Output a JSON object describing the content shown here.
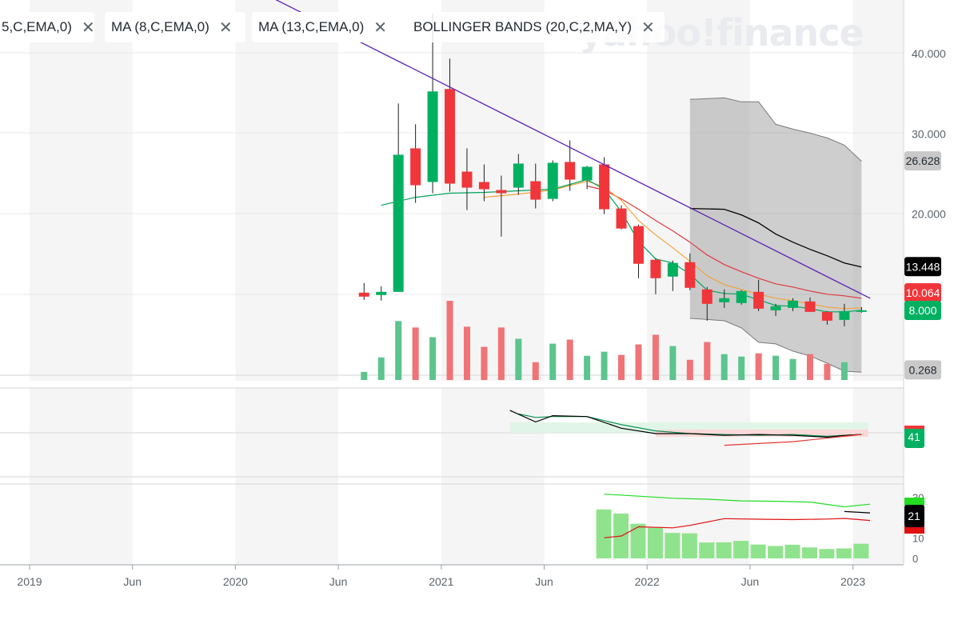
{
  "watermark": "yahoo!finance",
  "indicator_pills": [
    {
      "label": "5,C,EMA,0)",
      "close": "✕"
    },
    {
      "label": "MA (8,C,EMA,0)",
      "close": "✕"
    },
    {
      "label": "MA (13,C,EMA,0)",
      "close": "✕"
    },
    {
      "label": "BOLLINGER BANDS (20,C,2,MA,Y)",
      "close": "✕"
    }
  ],
  "colors": {
    "up": "#00b061",
    "down": "#f0363a",
    "up_vol": "#5cc48d",
    "down_vol": "#f07377",
    "ema5": "#00a35c",
    "ema8": "#f2a33a",
    "ema13": "#e0393e",
    "trend": "#5b1fb5",
    "bb_mid": "#000000",
    "grid": "#e8e8e8",
    "shade": "#f5f5f5"
  },
  "chart_data": [
    {
      "type": "candlestick",
      "x_ticks": [
        "2019",
        "Jun",
        "2020",
        "Jun",
        "2021",
        "Jun",
        "2022",
        "Jun",
        "2023"
      ],
      "y_ticks": [
        "40.000",
        "30.000",
        "20.000"
      ],
      "ylim": [
        -0.2,
        45
      ],
      "price_labels": [
        {
          "text": "26.628",
          "value": 26.628,
          "style": "gray"
        },
        {
          "text": "13.448",
          "value": 13.448,
          "style": "black"
        },
        {
          "text": "10.064",
          "value": 10.064,
          "style": "red"
        },
        {
          "text": "8.000",
          "value": 8.0,
          "style": "green"
        },
        {
          "text": "0.268",
          "value": 0.268,
          "style": "gray"
        }
      ],
      "candles": [
        {
          "t": 19.5,
          "o": 10.2,
          "h": 11.4,
          "l": 9.3,
          "c": 9.7
        },
        {
          "t": 20.5,
          "o": 9.9,
          "h": 11.0,
          "l": 9.2,
          "c": 10.3
        },
        {
          "t": 21.5,
          "o": 10.3,
          "h": 33.8,
          "l": 10.3,
          "c": 27.4
        },
        {
          "t": 22.5,
          "o": 28.2,
          "h": 31.2,
          "l": 21.4,
          "c": 23.6
        },
        {
          "t": 23.5,
          "o": 24.0,
          "h": 45.0,
          "l": 22.6,
          "c": 35.3
        },
        {
          "t": 24.5,
          "o": 35.6,
          "h": 39.4,
          "l": 22.8,
          "c": 23.8
        },
        {
          "t": 25.5,
          "o": 25.3,
          "h": 28.2,
          "l": 20.5,
          "c": 23.3
        },
        {
          "t": 26.5,
          "o": 24.0,
          "h": 26.2,
          "l": 21.6,
          "c": 23.1
        },
        {
          "t": 27.5,
          "o": 23.0,
          "h": 24.8,
          "l": 17.2,
          "c": 22.6
        },
        {
          "t": 28.5,
          "o": 23.3,
          "h": 27.5,
          "l": 22.4,
          "c": 26.3
        },
        {
          "t": 29.5,
          "o": 24.1,
          "h": 26.3,
          "l": 20.7,
          "c": 21.8
        },
        {
          "t": 30.5,
          "o": 21.9,
          "h": 26.7,
          "l": 21.6,
          "c": 26.4
        },
        {
          "t": 31.5,
          "o": 26.5,
          "h": 29.2,
          "l": 22.9,
          "c": 24.3
        },
        {
          "t": 32.5,
          "o": 24.2,
          "h": 26.0,
          "l": 23.1,
          "c": 25.9
        },
        {
          "t": 33.5,
          "o": 26.2,
          "h": 27.1,
          "l": 20.0,
          "c": 20.6
        },
        {
          "t": 34.5,
          "o": 20.7,
          "h": 21.1,
          "l": 18.1,
          "c": 18.2
        },
        {
          "t": 35.5,
          "o": 18.5,
          "h": 18.7,
          "l": 12.0,
          "c": 13.8
        },
        {
          "t": 36.5,
          "o": 14.3,
          "h": 14.5,
          "l": 10.0,
          "c": 12.0
        },
        {
          "t": 37.5,
          "o": 12.2,
          "h": 14.2,
          "l": 10.4,
          "c": 13.9
        },
        {
          "t": 38.5,
          "o": 14.0,
          "h": 15.1,
          "l": 10.5,
          "c": 10.8
        },
        {
          "t": 39.5,
          "o": 10.6,
          "h": 10.9,
          "l": 6.7,
          "c": 8.8
        },
        {
          "t": 40.5,
          "o": 9.0,
          "h": 10.6,
          "l": 8.3,
          "c": 9.5
        },
        {
          "t": 41.5,
          "o": 8.9,
          "h": 10.5,
          "l": 8.7,
          "c": 10.4
        },
        {
          "t": 42.5,
          "o": 10.3,
          "h": 11.8,
          "l": 7.9,
          "c": 8.2
        },
        {
          "t": 43.5,
          "o": 8.0,
          "h": 8.8,
          "l": 7.3,
          "c": 8.5
        },
        {
          "t": 44.5,
          "o": 8.3,
          "h": 9.5,
          "l": 7.9,
          "c": 9.2
        },
        {
          "t": 45.5,
          "o": 9.1,
          "h": 9.6,
          "l": 7.8,
          "c": 7.8
        },
        {
          "t": 46.5,
          "o": 7.8,
          "h": 7.9,
          "l": 6.2,
          "c": 6.7
        },
        {
          "t": 47.5,
          "o": 6.8,
          "h": 8.8,
          "l": 6.0,
          "c": 7.9
        },
        {
          "t": 48.5,
          "o": 7.9,
          "h": 8.4,
          "l": 7.7,
          "c": 8.0
        }
      ],
      "volume": [
        {
          "t": 19.5,
          "v": 1.0,
          "up": true
        },
        {
          "t": 20.5,
          "v": 2.8,
          "up": true
        },
        {
          "t": 21.5,
          "v": 7.3,
          "up": true
        },
        {
          "t": 22.5,
          "v": 6.5,
          "up": false
        },
        {
          "t": 23.5,
          "v": 5.3,
          "up": true
        },
        {
          "t": 24.5,
          "v": 9.8,
          "up": false
        },
        {
          "t": 25.5,
          "v": 6.6,
          "up": false
        },
        {
          "t": 26.5,
          "v": 4.1,
          "up": false
        },
        {
          "t": 27.5,
          "v": 6.5,
          "up": false
        },
        {
          "t": 28.5,
          "v": 5.1,
          "up": true
        },
        {
          "t": 29.5,
          "v": 2.2,
          "up": false
        },
        {
          "t": 30.5,
          "v": 4.5,
          "up": true
        },
        {
          "t": 31.5,
          "v": 5.0,
          "up": false
        },
        {
          "t": 32.5,
          "v": 3.0,
          "up": true
        },
        {
          "t": 33.5,
          "v": 3.5,
          "up": true
        },
        {
          "t": 34.5,
          "v": 3.1,
          "up": false
        },
        {
          "t": 35.5,
          "v": 4.4,
          "up": false
        },
        {
          "t": 36.5,
          "v": 5.6,
          "up": false
        },
        {
          "t": 37.5,
          "v": 4.2,
          "up": true
        },
        {
          "t": 38.5,
          "v": 2.5,
          "up": false
        },
        {
          "t": 39.5,
          "v": 4.7,
          "up": false
        },
        {
          "t": 40.5,
          "v": 3.2,
          "up": true
        },
        {
          "t": 41.5,
          "v": 2.9,
          "up": true
        },
        {
          "t": 42.5,
          "v": 3.3,
          "up": false
        },
        {
          "t": 43.5,
          "v": 3.0,
          "up": true
        },
        {
          "t": 44.5,
          "v": 2.6,
          "up": true
        },
        {
          "t": 45.5,
          "v": 3.2,
          "up": false
        },
        {
          "t": 46.5,
          "v": 2.0,
          "up": false
        },
        {
          "t": 47.5,
          "v": 2.2,
          "up": true
        }
      ],
      "ema5": [
        [
          20.5,
          21.1
        ],
        [
          22.5,
          22.1
        ],
        [
          24.5,
          22.6
        ],
        [
          26.5,
          22.7
        ],
        [
          28.5,
          22.9
        ],
        [
          30.5,
          23.1
        ],
        [
          32.5,
          24.3
        ],
        [
          33.5,
          23.1
        ],
        [
          34.5,
          20.3
        ],
        [
          35.5,
          16.6
        ],
        [
          36.5,
          14.4
        ],
        [
          37.5,
          13.9
        ],
        [
          38.5,
          12.5
        ],
        [
          39.5,
          10.5
        ],
        [
          40.5,
          10.1
        ],
        [
          41.5,
          10.0
        ],
        [
          42.5,
          9.3
        ],
        [
          43.5,
          8.6
        ],
        [
          44.5,
          8.5
        ],
        [
          45.5,
          8.2
        ],
        [
          46.5,
          7.8
        ],
        [
          47.5,
          7.8
        ],
        [
          48.5,
          8.0
        ]
      ],
      "ema8": [
        [
          26.5,
          22.1
        ],
        [
          28.5,
          22.5
        ],
        [
          30.5,
          23.0
        ],
        [
          32.5,
          24.1
        ],
        [
          33.5,
          23.4
        ],
        [
          34.5,
          21.7
        ],
        [
          35.5,
          19.2
        ],
        [
          36.5,
          17.4
        ],
        [
          37.5,
          15.8
        ],
        [
          38.5,
          14.1
        ],
        [
          39.5,
          12.3
        ],
        [
          40.5,
          11.2
        ],
        [
          41.5,
          10.6
        ],
        [
          42.5,
          10.0
        ],
        [
          43.5,
          9.5
        ],
        [
          44.5,
          9.2
        ],
        [
          45.5,
          8.8
        ],
        [
          46.5,
          8.4
        ],
        [
          47.5,
          8.2
        ],
        [
          48.5,
          8.3
        ]
      ],
      "ema13": [
        [
          32.5,
          23.5
        ],
        [
          33.5,
          23.0
        ],
        [
          34.5,
          21.9
        ],
        [
          35.5,
          20.6
        ],
        [
          36.5,
          19.2
        ],
        [
          37.5,
          17.9
        ],
        [
          38.5,
          16.5
        ],
        [
          39.5,
          14.9
        ],
        [
          40.5,
          13.7
        ],
        [
          41.5,
          12.8
        ],
        [
          42.5,
          12.0
        ],
        [
          43.5,
          11.3
        ],
        [
          44.5,
          10.9
        ],
        [
          45.5,
          10.4
        ],
        [
          46.5,
          10.0
        ],
        [
          47.5,
          9.8
        ],
        [
          48.5,
          9.5
        ]
      ],
      "bb_upper": [
        [
          38.5,
          34.3
        ],
        [
          40.5,
          34.5
        ],
        [
          41.5,
          34.0
        ],
        [
          42.5,
          34.0
        ],
        [
          43.5,
          31.2
        ],
        [
          44.5,
          30.6
        ],
        [
          45.5,
          30.1
        ],
        [
          46.5,
          29.5
        ],
        [
          47.5,
          28.6
        ],
        [
          48.5,
          26.6
        ]
      ],
      "bb_middle": [
        [
          38.5,
          20.7
        ],
        [
          40.5,
          20.6
        ],
        [
          41.5,
          19.9
        ],
        [
          42.5,
          18.9
        ],
        [
          43.5,
          17.5
        ],
        [
          44.5,
          16.5
        ],
        [
          45.5,
          15.6
        ],
        [
          46.5,
          14.8
        ],
        [
          47.5,
          13.9
        ],
        [
          48.5,
          13.4
        ]
      ],
      "bb_lower": [
        [
          38.5,
          7.0
        ],
        [
          40.5,
          6.7
        ],
        [
          41.5,
          5.8
        ],
        [
          42.5,
          4.0
        ],
        [
          43.5,
          3.8
        ],
        [
          44.5,
          2.9
        ],
        [
          45.5,
          2.3
        ],
        [
          46.5,
          1.4
        ],
        [
          47.5,
          0.4
        ],
        [
          48.5,
          0.27
        ]
      ],
      "trendline": [
        [
          13.2,
          45.0
        ],
        [
          49.0,
          9.5
        ]
      ]
    },
    {
      "type": "line",
      "name": "oscillator",
      "latest_label": "41",
      "black": [
        [
          28.0,
          41.6
        ],
        [
          29.5,
          40.3
        ],
        [
          30.5,
          41.0
        ],
        [
          32.5,
          40.9
        ],
        [
          34.5,
          39.6
        ],
        [
          36.5,
          39.0
        ],
        [
          38.5,
          39.0
        ],
        [
          40.5,
          38.8
        ],
        [
          42.5,
          38.9
        ],
        [
          44.5,
          38.8
        ],
        [
          46.5,
          38.6
        ],
        [
          47.5,
          38.8
        ],
        [
          48.5,
          38.9
        ]
      ],
      "green": [
        [
          28.5,
          41.2
        ],
        [
          29.5,
          40.8
        ],
        [
          30.5,
          40.9
        ],
        [
          32.5,
          40.9
        ],
        [
          34.5,
          40.0
        ],
        [
          36.5,
          39.3
        ],
        [
          38.5,
          39.0
        ],
        [
          40.5,
          38.9
        ],
        [
          42.5,
          38.8
        ],
        [
          44.5,
          38.9
        ],
        [
          46.5,
          38.7
        ],
        [
          48.5,
          38.9
        ]
      ],
      "red": [
        [
          40.5,
          37.7
        ],
        [
          44.5,
          38.1
        ],
        [
          47.5,
          38.7
        ],
        [
          48.5,
          38.9
        ]
      ]
    },
    {
      "type": "bar",
      "name": "directional",
      "y_ticks": [
        "30",
        "10",
        "0"
      ],
      "ylim": [
        0,
        33
      ],
      "labels": [
        {
          "text": "21",
          "value": 21
        }
      ],
      "bars": [
        [
          33.5,
          24
        ],
        [
          34.5,
          22
        ],
        [
          35.5,
          17
        ],
        [
          36.5,
          15
        ],
        [
          37.5,
          12.5
        ],
        [
          38.5,
          12.3
        ],
        [
          39.5,
          7.8
        ],
        [
          40.5,
          7.9
        ],
        [
          41.5,
          8.6
        ],
        [
          42.5,
          6.8
        ],
        [
          43.5,
          6.1
        ],
        [
          44.5,
          6.7
        ],
        [
          45.5,
          5.4
        ],
        [
          46.5,
          4.6
        ],
        [
          47.5,
          4.9
        ],
        [
          48.5,
          7.2
        ]
      ],
      "green_line": [
        [
          33.5,
          31.5
        ],
        [
          35.5,
          30.5
        ],
        [
          37.5,
          29.5
        ],
        [
          39.5,
          29.0
        ],
        [
          41.5,
          28.2
        ],
        [
          43.5,
          28.0
        ],
        [
          45.5,
          27.6
        ],
        [
          47.5,
          25.3
        ],
        [
          49.0,
          26.6
        ]
      ],
      "red_line": [
        [
          33.5,
          10.1
        ],
        [
          34.5,
          11.0
        ],
        [
          35.5,
          15.5
        ],
        [
          37.5,
          15.0
        ],
        [
          38.5,
          16.2
        ],
        [
          40.5,
          19.5
        ],
        [
          42.5,
          19.2
        ],
        [
          44.5,
          19.0
        ],
        [
          46.5,
          19.3
        ],
        [
          47.5,
          19.6
        ],
        [
          49.0,
          18.6
        ]
      ],
      "black_line": [
        [
          47.5,
          23.0
        ],
        [
          49.0,
          22.3
        ]
      ]
    }
  ]
}
